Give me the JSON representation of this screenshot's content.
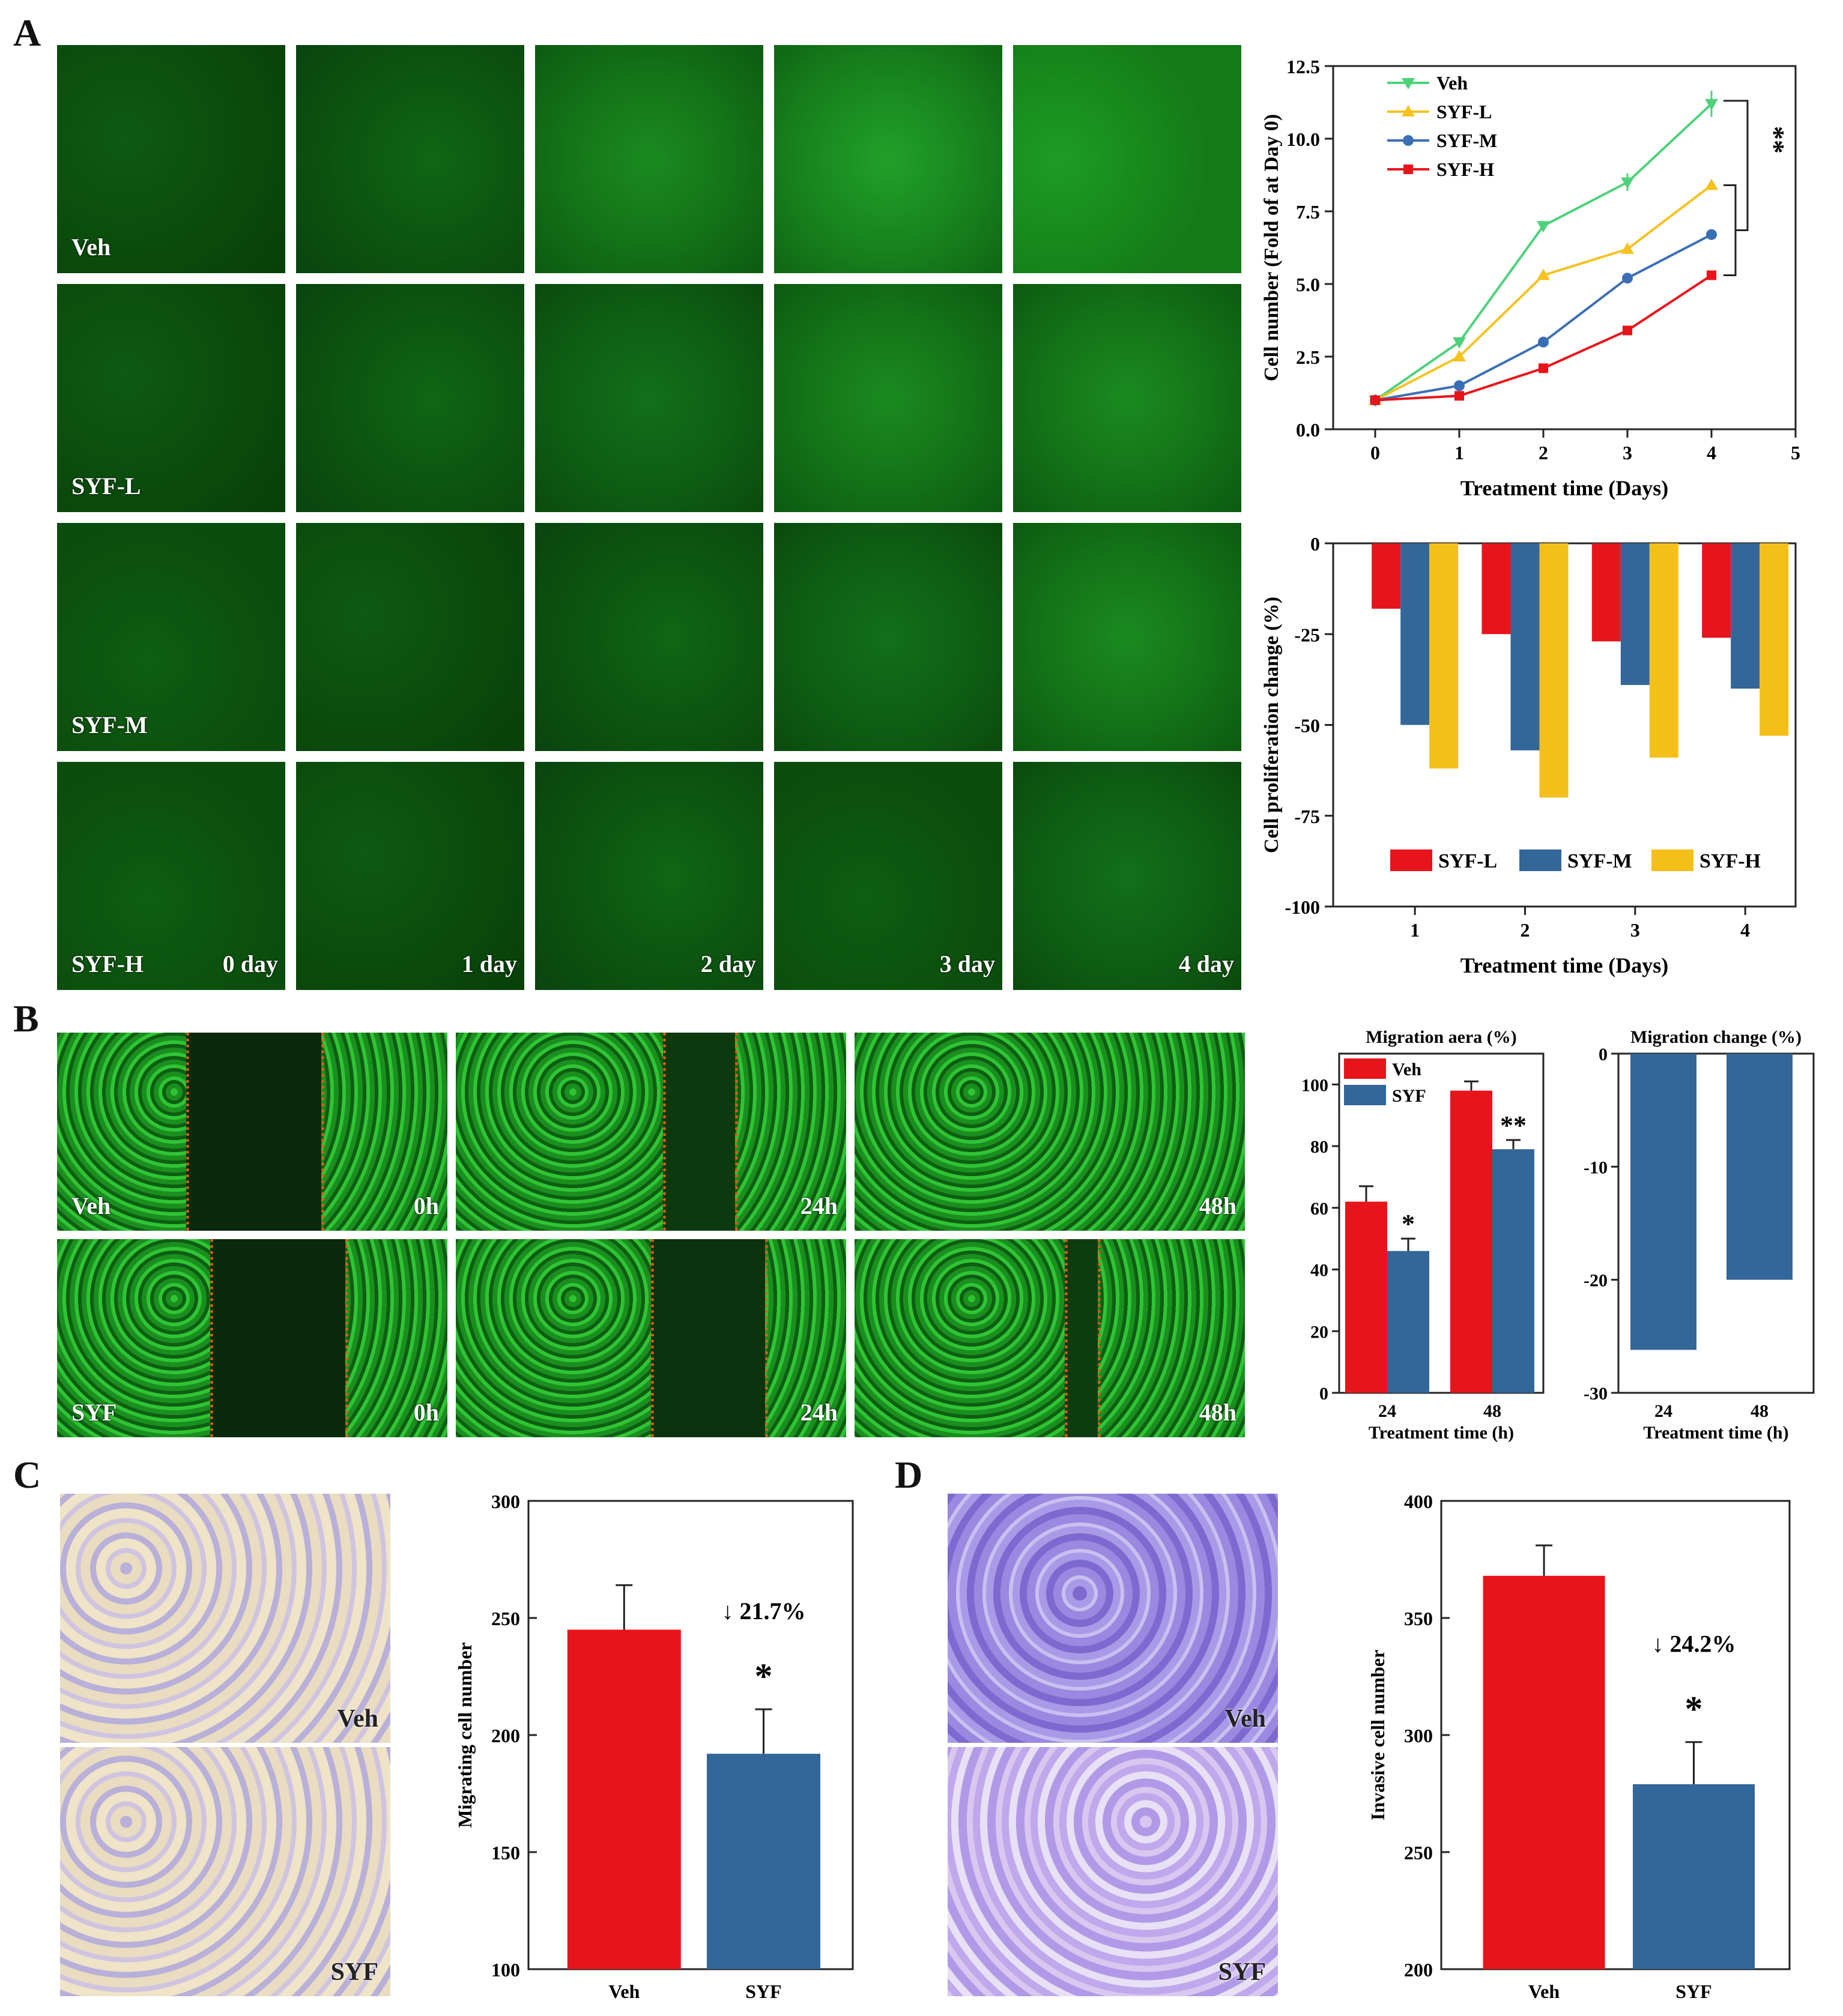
{
  "panels": {
    "A": "A",
    "B": "B",
    "C": "C",
    "D": "D"
  },
  "panelA": {
    "row_labels": [
      "Veh",
      "SYF-L",
      "SYF-M",
      "SYF-H"
    ],
    "col_labels": [
      "0 day",
      "1 day",
      "2 day",
      "3 day",
      "4 day"
    ]
  },
  "panelB": {
    "row_labels": [
      "Veh",
      "SYF"
    ],
    "col_labels": [
      "0h",
      "24h",
      "48h"
    ]
  },
  "panelC": {
    "labels": [
      "Veh",
      "SYF"
    ],
    "annotation": "↓ 21.7%",
    "sig": "*"
  },
  "panelD": {
    "labels": [
      "Veh",
      "SYF"
    ],
    "annotation": "↓ 24.2%",
    "sig": "*"
  },
  "colors": {
    "veh": "#e8141b",
    "syf_blue": "#336699",
    "syf_yellow": "#f5bf1a",
    "green_line": "#4dd27a",
    "syf_l_line": "#f7c21f",
    "syf_m_line": "#3b6fb5",
    "syf_h_line": "#e8141b"
  },
  "chart_data": [
    {
      "id": "A-line",
      "type": "line",
      "xlabel": "Treatment time (Days)",
      "ylabel": "Cell number (Fold of at Day 0)",
      "xlim": [
        -0.5,
        5
      ],
      "ylim": [
        0,
        12.5
      ],
      "xticks": [
        "0",
        "1",
        "2",
        "3",
        "4",
        "5"
      ],
      "yticks": [
        "0.0",
        "2.5",
        "5.0",
        "7.5",
        "10.0",
        "12.5"
      ],
      "x": [
        0,
        1,
        2,
        3,
        4
      ],
      "series": [
        {
          "name": "Veh",
          "values": [
            1.0,
            3.0,
            7.0,
            8.5,
            11.2
          ],
          "err": [
            0.1,
            0.15,
            0.15,
            0.3,
            0.45
          ],
          "color": "#4dd27a",
          "marker": "triangle-down"
        },
        {
          "name": "SYF-L",
          "values": [
            1.0,
            2.5,
            5.3,
            6.2,
            8.4
          ],
          "color": "#f7c21f",
          "marker": "triangle-up"
        },
        {
          "name": "SYF-M",
          "values": [
            1.0,
            1.5,
            3.0,
            5.2,
            6.7
          ],
          "color": "#3b6fb5",
          "marker": "circle"
        },
        {
          "name": "SYF-H",
          "values": [
            1.0,
            1.15,
            2.1,
            3.4,
            5.3
          ],
          "color": "#e8141b",
          "marker": "square"
        }
      ],
      "sig": "**",
      "legend": "top-left"
    },
    {
      "id": "A-bar",
      "type": "bar",
      "xlabel": "Treatment time (Days)",
      "ylabel": "Cell proliferation change (%)",
      "ylim": [
        -100,
        0
      ],
      "yticks": [
        "0",
        "-25",
        "-50",
        "-75",
        "-100"
      ],
      "categories": [
        "1",
        "2",
        "3",
        "4"
      ],
      "series": [
        {
          "name": "SYF-L",
          "values": [
            -18,
            -25,
            -27,
            -26
          ],
          "color": "#e8141b"
        },
        {
          "name": "SYF-M",
          "values": [
            -50,
            -57,
            -39,
            -40
          ],
          "color": "#336699"
        },
        {
          "name": "SYF-H",
          "values": [
            -62,
            -70,
            -59,
            -53
          ],
          "color": "#f5bf1a"
        }
      ],
      "legend": "bottom"
    },
    {
      "id": "B-area",
      "type": "bar",
      "title": "Migration aera (%)",
      "xlabel": "Treatment time (h)",
      "ylim": [
        0,
        110
      ],
      "yticks": [
        "0",
        "20",
        "40",
        "60",
        "80",
        "100"
      ],
      "categories": [
        "24",
        "48"
      ],
      "series": [
        {
          "name": "Veh",
          "values": [
            62,
            98
          ],
          "err": [
            5,
            3
          ],
          "color": "#e8141b"
        },
        {
          "name": "SYF",
          "values": [
            46,
            79
          ],
          "err": [
            4,
            3
          ],
          "color": "#336699"
        }
      ],
      "sig": [
        "*",
        "**"
      ],
      "legend": "top-left"
    },
    {
      "id": "B-change",
      "type": "bar",
      "title": "Migration change (%)",
      "xlabel": "Treatment time (h)",
      "ylim": [
        -30,
        0
      ],
      "yticks": [
        "0",
        "-10",
        "-20",
        "-30"
      ],
      "categories": [
        "24",
        "48"
      ],
      "values": [
        -26.2,
        -20
      ],
      "color": "#336699"
    },
    {
      "id": "C-bar",
      "type": "bar",
      "ylabel": "Migrating cell number",
      "ylim": [
        100,
        300
      ],
      "yticks": [
        "100",
        "150",
        "200",
        "250",
        "300"
      ],
      "categories": [
        "Veh",
        "SYF"
      ],
      "values": [
        245,
        192
      ],
      "err": [
        19,
        19
      ],
      "colors": [
        "#e8141b",
        "#336699"
      ]
    },
    {
      "id": "D-bar",
      "type": "bar",
      "ylabel": "Invasive cell number",
      "ylim": [
        200,
        400
      ],
      "yticks": [
        "200",
        "250",
        "300",
        "350",
        "400"
      ],
      "categories": [
        "Veh",
        "SYF"
      ],
      "values": [
        368,
        279
      ],
      "err": [
        13,
        18
      ],
      "colors": [
        "#e8141b",
        "#336699"
      ]
    }
  ]
}
